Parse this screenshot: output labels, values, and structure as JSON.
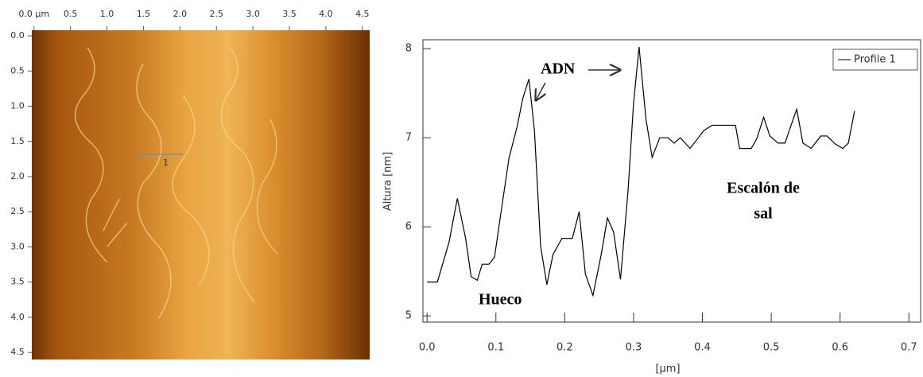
{
  "chart_data": [
    {
      "type": "image",
      "xlim": [
        -0.03,
        4.6
      ],
      "ylim": [
        -0.08,
        4.6
      ],
      "xticks": [
        {
          "value": 0,
          "label": "0.0 µm"
        },
        0.5,
        {
          "value": 1,
          "label": "1.0"
        },
        1.5,
        {
          "value": 2,
          "label": "2.0"
        },
        2.5,
        {
          "value": 3,
          "label": "3.0"
        },
        3.5,
        {
          "value": 4,
          "label": "4.0"
        },
        4.5
      ],
      "yticks": [
        {
          "value": 0,
          "label": "0.0"
        },
        0.5,
        {
          "value": 1,
          "label": "1.0"
        },
        1.5,
        {
          "value": 2,
          "label": "2.0"
        },
        2.5,
        {
          "value": 3,
          "label": "3.0"
        },
        3.5,
        {
          "value": 4,
          "label": "4.0"
        },
        4.5
      ],
      "profile_label": "1"
    },
    {
      "type": "line",
      "x_label": "[µm]",
      "y_label": "Altura [nm]",
      "xlim": [
        -0.006,
        0.717
      ],
      "ylim": [
        4.93,
        8.1
      ],
      "xticks": [
        {
          "value": 0,
          "label": "0.0"
        },
        0.1,
        0.2,
        0.3,
        0.4,
        0.5,
        0.6,
        0.7
      ],
      "yticks": [
        5,
        6,
        7,
        8
      ],
      "legend": "top-right",
      "annotations": [
        "ADN",
        "Hueco",
        "Escalón de",
        "sal"
      ],
      "x": [
        0,
        0.015,
        0.032,
        0.044,
        0.056,
        0.064,
        0.073,
        0.08,
        0.09,
        0.098,
        0.107,
        0.119,
        0.131,
        0.139,
        0.148,
        0.156,
        0.165,
        0.174,
        0.183,
        0.196,
        0.211,
        0.221,
        0.23,
        0.241,
        0.253,
        0.262,
        0.271,
        0.281,
        0.292,
        0.3,
        0.308,
        0.318,
        0.327,
        0.338,
        0.35,
        0.359,
        0.368,
        0.382,
        0.393,
        0.402,
        0.414,
        0.437,
        0.448,
        0.454,
        0.471,
        0.479,
        0.489,
        0.498,
        0.51,
        0.52,
        0.527,
        0.537,
        0.546,
        0.558,
        0.572,
        0.581,
        0.593,
        0.604,
        0.612,
        0.621
      ],
      "series": [
        {
          "name": "Profile 1",
          "color": "#000000",
          "values": [
            5.38,
            5.38,
            5.83,
            6.32,
            5.87,
            5.44,
            5.4,
            5.58,
            5.58,
            5.66,
            6.14,
            6.77,
            7.13,
            7.44,
            7.66,
            7.08,
            5.78,
            5.35,
            5.69,
            5.87,
            5.87,
            6.17,
            5.47,
            5.23,
            5.69,
            6.1,
            5.94,
            5.41,
            6.41,
            7.39,
            8.02,
            7.21,
            6.78,
            7.0,
            7.0,
            6.94,
            7.0,
            6.88,
            6.99,
            7.08,
            7.14,
            7.14,
            7.14,
            6.88,
            6.88,
            6.99,
            7.23,
            7.02,
            6.94,
            6.94,
            7.1,
            7.32,
            6.94,
            6.88,
            7.02,
            7.02,
            6.93,
            6.88,
            6.94,
            7.3
          ]
        }
      ]
    }
  ]
}
